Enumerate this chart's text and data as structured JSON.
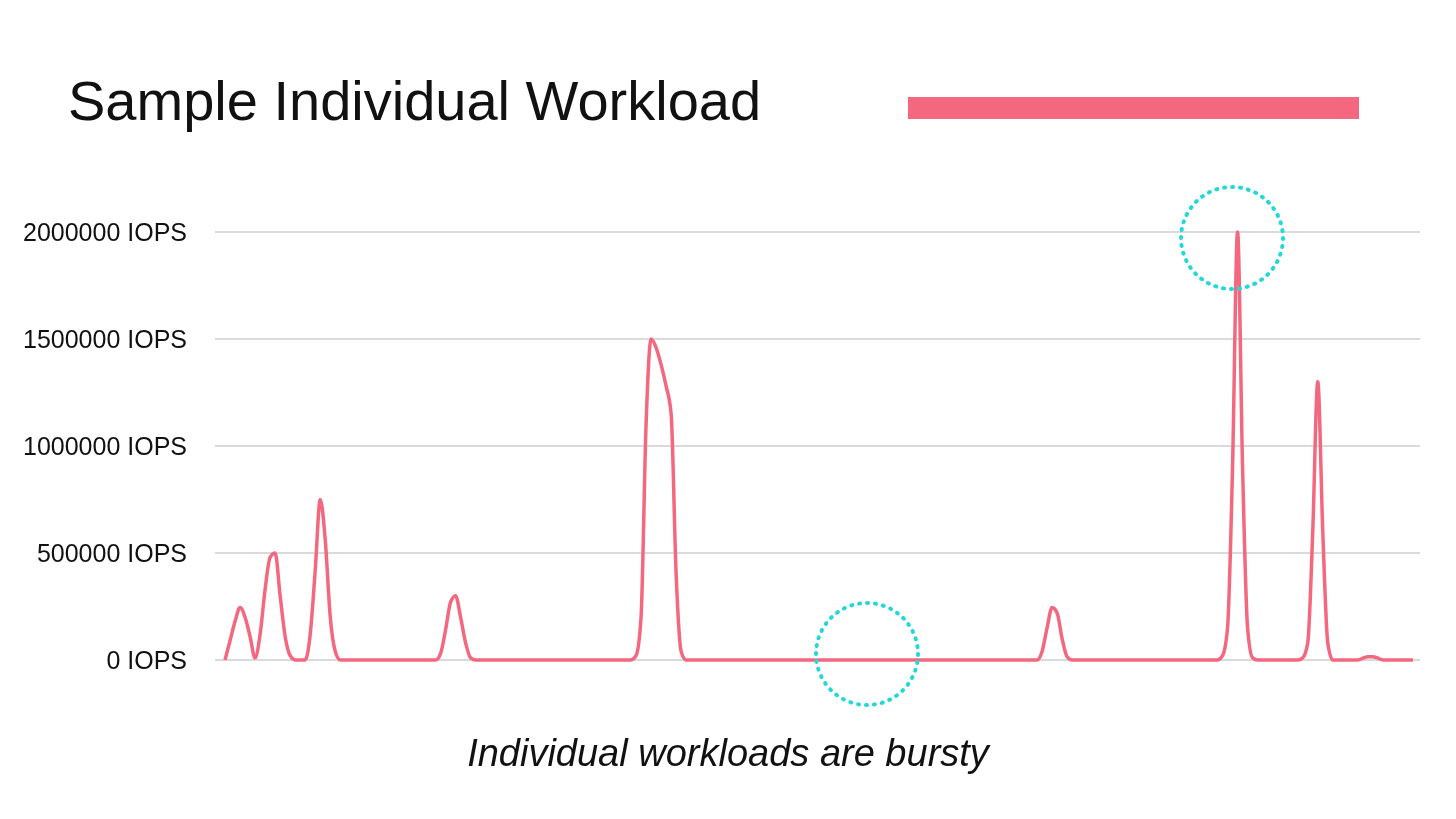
{
  "chart_data": {
    "type": "line",
    "title": "Sample Individual Workload",
    "annotations": [
      "Individual workloads are bursty"
    ],
    "categories": [
      null,
      null,
      null,
      null,
      null,
      null,
      null,
      null,
      null,
      null,
      null,
      null,
      null,
      null,
      null,
      null,
      null,
      null,
      null,
      null,
      null,
      null,
      null,
      null,
      null,
      null,
      null,
      null,
      null,
      null,
      null,
      null,
      null,
      null,
      null,
      null,
      null,
      null,
      null,
      null,
      null,
      null,
      null,
      null,
      null,
      null,
      null,
      null,
      null,
      null,
      null,
      null,
      null,
      null,
      null,
      null,
      null,
      null,
      null,
      null,
      null,
      null,
      null,
      null,
      null,
      null,
      null,
      null,
      null,
      null,
      null,
      null,
      null,
      null,
      null,
      null,
      null,
      null,
      null,
      null,
      null,
      null,
      null,
      null,
      null,
      null,
      null,
      null,
      null,
      null,
      null,
      null,
      null,
      null,
      null,
      null,
      null,
      null,
      null,
      null,
      null,
      null,
      null,
      null,
      null,
      null,
      null,
      null,
      null,
      null,
      null,
      null,
      null,
      null,
      null,
      null,
      null,
      null,
      null,
      null,
      null,
      null,
      null,
      null,
      null,
      null,
      null,
      null,
      null,
      null,
      null,
      null,
      null,
      null,
      null,
      null,
      null,
      null,
      null,
      null,
      null,
      null,
      null,
      null,
      null,
      null,
      null,
      null,
      null,
      null,
      null,
      null,
      null,
      null,
      null,
      null,
      null,
      null,
      null,
      null,
      null,
      null,
      null,
      null,
      null,
      null,
      null,
      null,
      null,
      null,
      null,
      null,
      null,
      null,
      null,
      null,
      null,
      null,
      null,
      null,
      null,
      null,
      null,
      null,
      null,
      null,
      null,
      null,
      null,
      null,
      null,
      null,
      null,
      null,
      null,
      null,
      null,
      null,
      null,
      null,
      null,
      null,
      null,
      null,
      null,
      null,
      null,
      null,
      null,
      null,
      null,
      null,
      null,
      null,
      null,
      null,
      null,
      null,
      null,
      null,
      null,
      null,
      null,
      null,
      null,
      null,
      null,
      null,
      null,
      null,
      null,
      null,
      null,
      null,
      null,
      null,
      null,
      null
    ],
    "series": [
      {
        "color": "#f4687f",
        "values": [
          0,
          90000,
          180000,
          245000,
          200000,
          110000,
          10000,
          120000,
          330000,
          480000,
          500000,
          300000,
          110000,
          20000,
          0,
          0,
          0,
          120000,
          420000,
          750000,
          560000,
          200000,
          40000,
          0,
          0,
          0,
          0,
          0,
          0,
          0,
          0,
          0,
          0,
          0,
          0,
          0,
          0,
          0,
          0,
          0,
          0,
          0,
          0,
          30000,
          140000,
          270000,
          300000,
          200000,
          80000,
          10000,
          0,
          0,
          0,
          0,
          0,
          0,
          0,
          0,
          0,
          0,
          0,
          0,
          0,
          0,
          0,
          0,
          0,
          0,
          0,
          0,
          0,
          0,
          0,
          0,
          0,
          0,
          0,
          0,
          0,
          0,
          0,
          0,
          20000,
          200000,
          1100000,
          1500000,
          1460000,
          1380000,
          1280000,
          1150000,
          400000,
          40000,
          0,
          0,
          0,
          0,
          0,
          0,
          0,
          0,
          0,
          0,
          0,
          0,
          0,
          0,
          0,
          0,
          0,
          0,
          0,
          0,
          0,
          0,
          0,
          0,
          0,
          0,
          0,
          0,
          0,
          0,
          0,
          0,
          0,
          0,
          0,
          0,
          0,
          0,
          0,
          0,
          0,
          0,
          0,
          0,
          0,
          0,
          0,
          0,
          0,
          0,
          0,
          0,
          0,
          0,
          0,
          0,
          0,
          0,
          0,
          0,
          0,
          0,
          0,
          0,
          0,
          0,
          0,
          0,
          0,
          0,
          0,
          40000,
          150000,
          245000,
          220000,
          100000,
          15000,
          0,
          0,
          0,
          0,
          0,
          0,
          0,
          0,
          0,
          0,
          0,
          0,
          0,
          0,
          0,
          0,
          0,
          0,
          0,
          0,
          0,
          0,
          0,
          0,
          0,
          0,
          0,
          0,
          0,
          0,
          20000,
          150000,
          900000,
          2000000,
          900000,
          150000,
          10000,
          0,
          0,
          0,
          0,
          0,
          0,
          0,
          0,
          0,
          10000,
          80000,
          600000,
          1300000,
          600000,
          80000,
          0,
          0,
          0,
          0,
          0,
          0,
          8000,
          15000,
          15000,
          8000,
          0,
          0,
          0,
          0,
          0,
          0,
          0
        ]
      }
    ],
    "ylim": [
      0,
      2000000
    ],
    "yticks": [
      {
        "value": 0,
        "label": "0 IOPS"
      },
      {
        "value": 500000,
        "label": "500000 IOPS"
      },
      {
        "value": 1000000,
        "label": "1000000 IOPS"
      },
      {
        "value": 1500000,
        "label": "1500000 IOPS"
      },
      {
        "value": 2000000,
        "label": "2000000 IOPS"
      }
    ],
    "grid": "y",
    "tick_labels": "y",
    "marker": "none"
  }
}
